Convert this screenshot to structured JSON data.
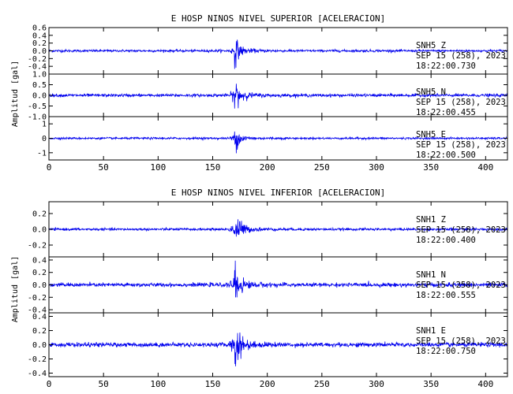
{
  "chart_data": [
    {
      "type": "line",
      "title": "E HOSP NINOS NIVEL SUPERIOR [ACELERACION]",
      "ylabel": "Amplitud [gal]",
      "xlabel": "",
      "xlim": [
        0,
        420
      ],
      "x_ticks": [
        0,
        50,
        100,
        150,
        200,
        250,
        300,
        350,
        400
      ],
      "grid": false,
      "line_color": "#0000ee",
      "event_x": 170,
      "panels": [
        {
          "station": "SNH5  Z",
          "date": "SEP 15 (258), 2023",
          "time": "18:22:00.730",
          "ylim": [
            -0.6,
            0.6
          ],
          "y_ticks": [
            "0.6",
            "0.4",
            "0.2",
            "0.0",
            "-0.2",
            "-0.4"
          ],
          "y_tick_values": [
            0.6,
            0.4,
            0.2,
            0.0,
            -0.2,
            -0.4
          ],
          "noise": 0.03,
          "peak": 0.35
        },
        {
          "station": "SNH5  N",
          "date": "SEP 15 (258), 2023",
          "time": "18:22:00.455",
          "ylim": [
            -1.0,
            1.0
          ],
          "y_ticks": [
            "1.0",
            "0.5",
            "0.0",
            "-0.5",
            "-1.0"
          ],
          "y_tick_values": [
            1.0,
            0.5,
            0.0,
            -0.5,
            -1.0
          ],
          "noise": 0.07,
          "peak": 0.8
        },
        {
          "station": "SNH5  E",
          "date": "SEP 15 (258), 2023",
          "time": "18:22:00.500",
          "ylim": [
            -1.5,
            1.5
          ],
          "y_ticks": [
            "1",
            "0",
            "-1"
          ],
          "y_tick_values": [
            1,
            0,
            -1
          ],
          "noise": 0.07,
          "peak": 0.9
        }
      ]
    },
    {
      "type": "line",
      "title": "E HOSP NINOS NIVEL INFERIOR [ACELERACION]",
      "ylabel": "Amplitud [gal]",
      "xlabel": "",
      "xlim": [
        0,
        420
      ],
      "x_ticks": [
        0,
        50,
        100,
        150,
        200,
        250,
        300,
        350,
        400
      ],
      "grid": false,
      "line_color": "#0000ee",
      "event_x": 170,
      "panels": [
        {
          "station": "SNH1  Z",
          "date": "SEP 15 (258), 2023",
          "time": "18:22:00.400",
          "ylim": [
            -0.35,
            0.35
          ],
          "y_ticks": [
            "0.2",
            "0.0",
            "-0.2"
          ],
          "y_tick_values": [
            0.2,
            0.0,
            -0.2
          ],
          "noise": 0.015,
          "peak": 0.28
        },
        {
          "station": "SNH1  N",
          "date": "SEP 15 (258), 2023",
          "time": "18:22:00.555",
          "ylim": [
            -0.45,
            0.45
          ],
          "y_ticks": [
            "0.4",
            "0.2",
            "0.0",
            "-0.2",
            "-0.4"
          ],
          "y_tick_values": [
            0.4,
            0.2,
            0.0,
            -0.2,
            -0.4
          ],
          "noise": 0.03,
          "peak": 0.35
        },
        {
          "station": "SNH1  E",
          "date": "SEP 15 (258), 2023",
          "time": "18:22:00.750",
          "ylim": [
            -0.45,
            0.45
          ],
          "y_ticks": [
            "0.4",
            "0.2",
            "0.0",
            "-0.2",
            "-0.4"
          ],
          "y_tick_values": [
            0.4,
            0.2,
            0.0,
            -0.2,
            -0.4
          ],
          "noise": 0.03,
          "peak": 0.38
        }
      ]
    }
  ]
}
